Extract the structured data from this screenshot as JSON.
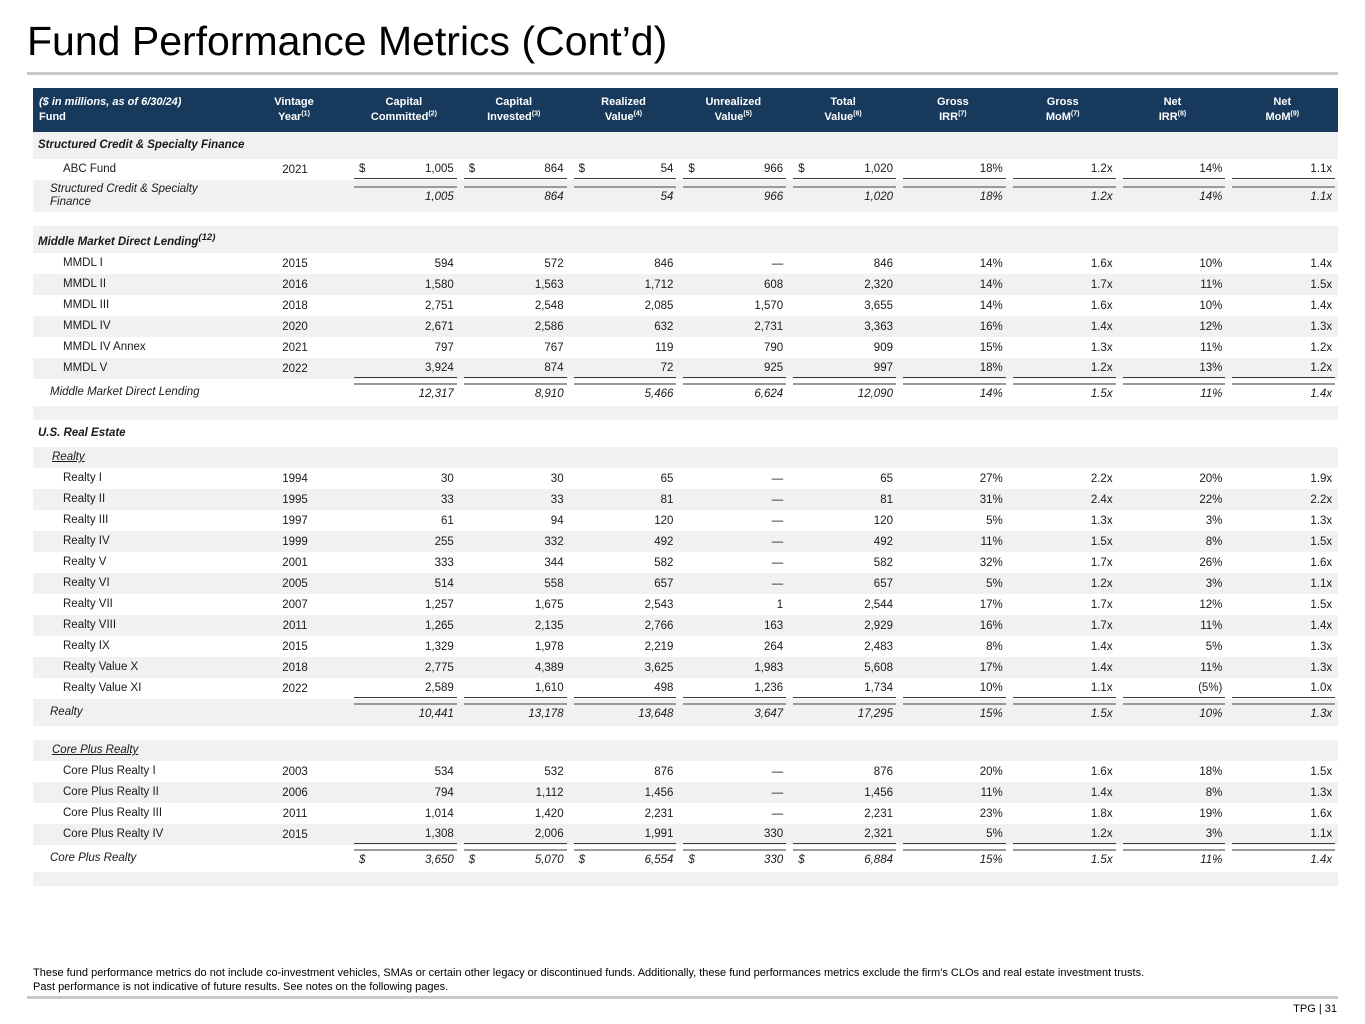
{
  "page": {
    "title": "Fund Performance Metrics (Cont’d)",
    "footnote_line1": "These fund performance metrics do not include co-investment vehicles, SMAs or certain other legacy or discontinued funds. Additionally, these fund performances metrics exclude the firm’s CLOs and real estate investment trusts.",
    "footnote_line2": "Past performance is not indicative of future results. See notes on the following pages.",
    "page_label": "TPG | 31"
  },
  "colors": {
    "header_bg": "#17395C",
    "header_text": "#FFFFFF",
    "row_stripe": "#F1F1F1",
    "rule_gray": "#C9C9C9",
    "underline_dark": "#3A3A3A",
    "subtotal_topline": "#9A9A9A"
  },
  "table": {
    "header": {
      "col0_line1": "($ in millions, as of 6/30/24)",
      "col0_line2": "Fund",
      "columns": [
        {
          "line1": "Vintage",
          "line2": "Year",
          "sup": "(1)"
        },
        {
          "line1": "Capital",
          "line2": "Committed",
          "sup": "(2)"
        },
        {
          "line1": "Capital",
          "line2": "Invested",
          "sup": "(3)"
        },
        {
          "line1": "Realized",
          "line2": "Value",
          "sup": "(4)"
        },
        {
          "line1": "Unrealized",
          "line2": "Value",
          "sup": "(5)"
        },
        {
          "line1": "Total",
          "line2": "Value",
          "sup": "(6)"
        },
        {
          "line1": "Gross",
          "line2": "IRR",
          "sup": "(7)"
        },
        {
          "line1": "Gross",
          "line2": "MoM",
          "sup": "(7)"
        },
        {
          "line1": "Net",
          "line2": "IRR",
          "sup": "(8)"
        },
        {
          "line1": "Net",
          "line2": "MoM",
          "sup": "(9)"
        }
      ]
    },
    "rows": [
      {
        "type": "section",
        "name": "Structured Credit & Specialty Finance"
      },
      {
        "type": "fund",
        "name": "ABC Fund",
        "vintage": "2021",
        "dollar": true,
        "ul": true,
        "values": [
          "1,005",
          "864",
          "54",
          "966",
          "1,020",
          "18%",
          "1.2x",
          "14%",
          "1.1x"
        ]
      },
      {
        "type": "subtotal",
        "name": "Structured Credit & Specialty Finance",
        "tl": true,
        "values": [
          "1,005",
          "864",
          "54",
          "966",
          "1,020",
          "18%",
          "1.2x",
          "14%",
          "1.1x"
        ]
      },
      {
        "type": "spacer"
      },
      {
        "type": "section",
        "name": "Middle Market Direct Lending",
        "sup": "(12)"
      },
      {
        "type": "fund",
        "name": "MMDL I",
        "vintage": "2015",
        "values": [
          "594",
          "572",
          "846",
          "—",
          "846",
          "14%",
          "1.6x",
          "10%",
          "1.4x"
        ]
      },
      {
        "type": "fund",
        "name": "MMDL II",
        "vintage": "2016",
        "values": [
          "1,580",
          "1,563",
          "1,712",
          "608",
          "2,320",
          "14%",
          "1.7x",
          "11%",
          "1.5x"
        ]
      },
      {
        "type": "fund",
        "name": "MMDL III",
        "vintage": "2018",
        "values": [
          "2,751",
          "2,548",
          "2,085",
          "1,570",
          "3,655",
          "14%",
          "1.6x",
          "10%",
          "1.4x"
        ]
      },
      {
        "type": "fund",
        "name": "MMDL IV",
        "vintage": "2020",
        "values": [
          "2,671",
          "2,586",
          "632",
          "2,731",
          "3,363",
          "16%",
          "1.4x",
          "12%",
          "1.3x"
        ]
      },
      {
        "type": "fund",
        "name": "MMDL IV Annex",
        "vintage": "2021",
        "values": [
          "797",
          "767",
          "119",
          "790",
          "909",
          "15%",
          "1.3x",
          "11%",
          "1.2x"
        ]
      },
      {
        "type": "fund",
        "name": "MMDL V",
        "vintage": "2022",
        "ul": true,
        "values": [
          "3,924",
          "874",
          "72",
          "925",
          "997",
          "18%",
          "1.2x",
          "13%",
          "1.2x"
        ]
      },
      {
        "type": "subtotal",
        "name": "Middle Market Direct Lending",
        "tl": true,
        "values": [
          "12,317",
          "8,910",
          "5,466",
          "6,624",
          "12,090",
          "14%",
          "1.5x",
          "11%",
          "1.4x"
        ]
      },
      {
        "type": "spacer"
      },
      {
        "type": "section",
        "name": "U.S. Real Estate"
      },
      {
        "type": "subsection",
        "name": "Realty"
      },
      {
        "type": "fund",
        "name": "Realty I",
        "vintage": "1994",
        "values": [
          "30",
          "30",
          "65",
          "—",
          "65",
          "27%",
          "2.2x",
          "20%",
          "1.9x"
        ]
      },
      {
        "type": "fund",
        "name": "Realty II",
        "vintage": "1995",
        "values": [
          "33",
          "33",
          "81",
          "—",
          "81",
          "31%",
          "2.4x",
          "22%",
          "2.2x"
        ]
      },
      {
        "type": "fund",
        "name": "Realty III",
        "vintage": "1997",
        "values": [
          "61",
          "94",
          "120",
          "—",
          "120",
          "5%",
          "1.3x",
          "3%",
          "1.3x"
        ]
      },
      {
        "type": "fund",
        "name": "Realty IV",
        "vintage": "1999",
        "values": [
          "255",
          "332",
          "492",
          "—",
          "492",
          "11%",
          "1.5x",
          "8%",
          "1.5x"
        ]
      },
      {
        "type": "fund",
        "name": "Realty V",
        "vintage": "2001",
        "values": [
          "333",
          "344",
          "582",
          "—",
          "582",
          "32%",
          "1.7x",
          "26%",
          "1.6x"
        ]
      },
      {
        "type": "fund",
        "name": "Realty VI",
        "vintage": "2005",
        "values": [
          "514",
          "558",
          "657",
          "—",
          "657",
          "5%",
          "1.2x",
          "3%",
          "1.1x"
        ]
      },
      {
        "type": "fund",
        "name": "Realty VII",
        "vintage": "2007",
        "values": [
          "1,257",
          "1,675",
          "2,543",
          "1",
          "2,544",
          "17%",
          "1.7x",
          "12%",
          "1.5x"
        ]
      },
      {
        "type": "fund",
        "name": "Realty VIII",
        "vintage": "2011",
        "values": [
          "1,265",
          "2,135",
          "2,766",
          "163",
          "2,929",
          "16%",
          "1.7x",
          "11%",
          "1.4x"
        ]
      },
      {
        "type": "fund",
        "name": "Realty IX",
        "vintage": "2015",
        "values": [
          "1,329",
          "1,978",
          "2,219",
          "264",
          "2,483",
          "8%",
          "1.4x",
          "5%",
          "1.3x"
        ]
      },
      {
        "type": "fund",
        "name": "Realty Value X",
        "vintage": "2018",
        "values": [
          "2,775",
          "4,389",
          "3,625",
          "1,983",
          "5,608",
          "17%",
          "1.4x",
          "11%",
          "1.3x"
        ]
      },
      {
        "type": "fund",
        "name": "Realty Value XI",
        "vintage": "2022",
        "ul": true,
        "values": [
          "2,589",
          "1,610",
          "498",
          "1,236",
          "1,734",
          "10%",
          "1.1x",
          "(5%)",
          "1.0x"
        ]
      },
      {
        "type": "subtotal",
        "name": "Realty",
        "tl": true,
        "values": [
          "10,441",
          "13,178",
          "13,648",
          "3,647",
          "17,295",
          "15%",
          "1.5x",
          "10%",
          "1.3x"
        ]
      },
      {
        "type": "spacer"
      },
      {
        "type": "subsection",
        "name": "Core Plus Realty"
      },
      {
        "type": "fund",
        "name": "Core Plus Realty I",
        "vintage": "2003",
        "values": [
          "534",
          "532",
          "876",
          "—",
          "876",
          "20%",
          "1.6x",
          "18%",
          "1.5x"
        ]
      },
      {
        "type": "fund",
        "name": "Core Plus Realty II",
        "vintage": "2006",
        "values": [
          "794",
          "1,112",
          "1,456",
          "—",
          "1,456",
          "11%",
          "1.4x",
          "8%",
          "1.3x"
        ]
      },
      {
        "type": "fund",
        "name": "Core Plus Realty III",
        "vintage": "2011",
        "values": [
          "1,014",
          "1,420",
          "2,231",
          "—",
          "2,231",
          "23%",
          "1.8x",
          "19%",
          "1.6x"
        ]
      },
      {
        "type": "fund",
        "name": "Core Plus Realty IV",
        "vintage": "2015",
        "ul": true,
        "values": [
          "1,308",
          "2,006",
          "1,991",
          "330",
          "2,321",
          "5%",
          "1.2x",
          "3%",
          "1.1x"
        ]
      },
      {
        "type": "subtotal",
        "name": "Core Plus Realty",
        "dollar": true,
        "tl": true,
        "values": [
          "3,650",
          "5,070",
          "6,554",
          "330",
          "6,884",
          "15%",
          "1.5x",
          "11%",
          "1.4x"
        ]
      },
      {
        "type": "spacer"
      }
    ]
  }
}
